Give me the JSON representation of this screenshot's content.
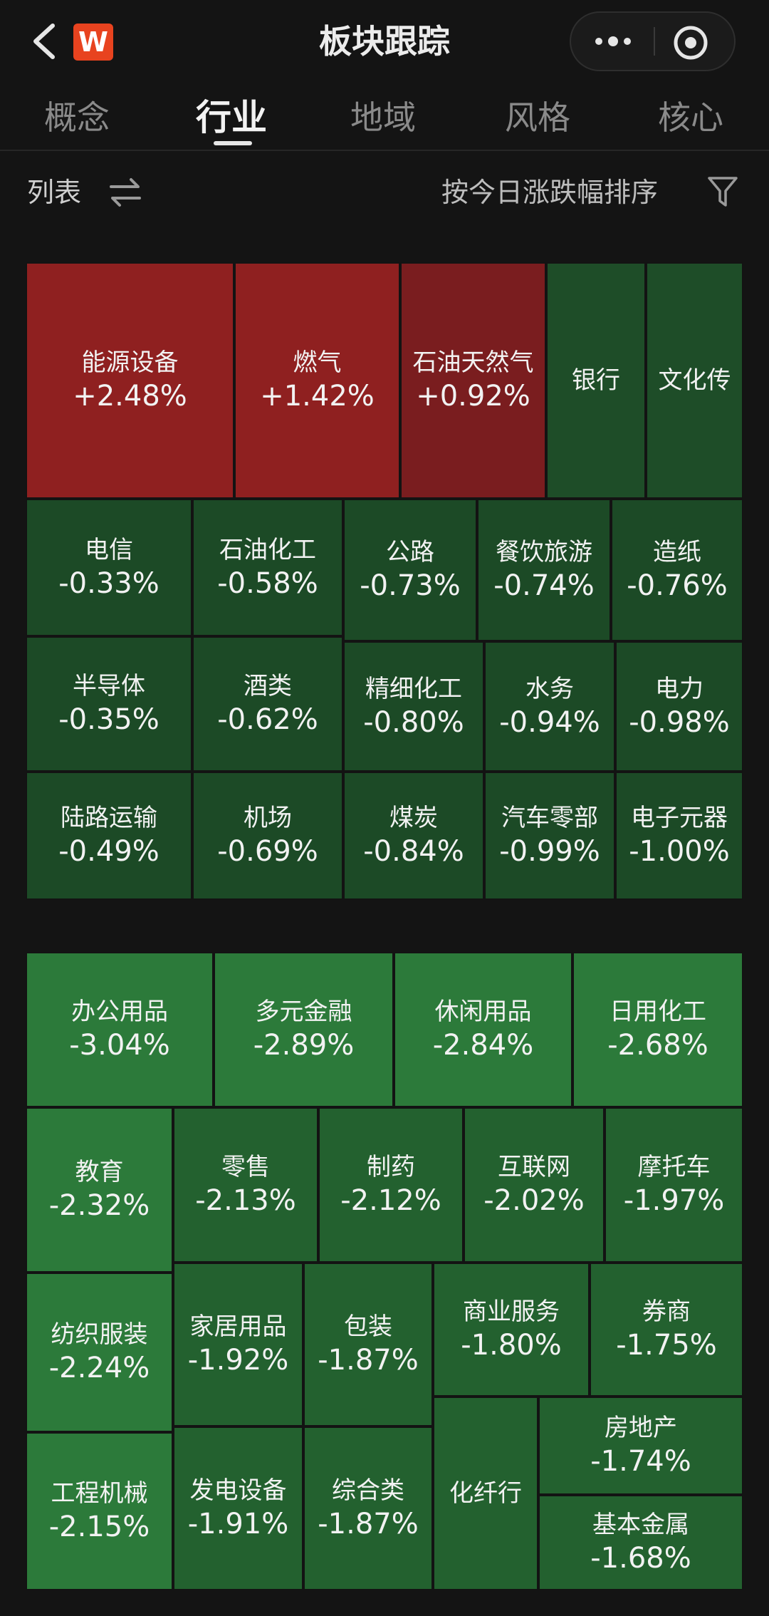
{
  "header": {
    "title": "板块跟踪",
    "logo_text": "W",
    "brand_color": "#e8431f"
  },
  "tabs": [
    {
      "label": "概念",
      "active": false
    },
    {
      "label": "行业",
      "active": true
    },
    {
      "label": "地域",
      "active": false
    },
    {
      "label": "风格",
      "active": false
    },
    {
      "label": "核心",
      "active": false
    }
  ],
  "toolbar": {
    "list_label": "列表",
    "sort_label": "按今日涨跌幅排序"
  },
  "colors": {
    "up": "#8f2020",
    "down_dark": "#1c4a26",
    "down_mid": "#23612f",
    "down_light": "#2c7a3a"
  },
  "top_map": [
    {
      "name": "能源设备",
      "change": "+2.48%",
      "tone": "up"
    },
    {
      "name": "燃气",
      "change": "+1.42%",
      "tone": "up"
    },
    {
      "name": "石油天然气",
      "change": "+0.92%",
      "tone": "up2"
    },
    {
      "name": "银行",
      "change": "",
      "tone": "flat"
    },
    {
      "name": "文化传",
      "change": "",
      "tone": "flat"
    },
    {
      "name": "电信",
      "change": "-0.33%",
      "tone": "d1"
    },
    {
      "name": "石油化工",
      "change": "-0.58%",
      "tone": "d1"
    },
    {
      "name": "公路",
      "change": "-0.73%",
      "tone": "d1"
    },
    {
      "name": "餐饮旅游",
      "change": "-0.74%",
      "tone": "d1"
    },
    {
      "name": "造纸",
      "change": "-0.76%",
      "tone": "d1"
    },
    {
      "name": "半导体",
      "change": "-0.35%",
      "tone": "d1"
    },
    {
      "name": "酒类",
      "change": "-0.62%",
      "tone": "d1"
    },
    {
      "name": "精细化工",
      "change": "-0.80%",
      "tone": "d1"
    },
    {
      "name": "水务",
      "change": "-0.94%",
      "tone": "d1"
    },
    {
      "name": "电力",
      "change": "-0.98%",
      "tone": "d1"
    },
    {
      "name": "陆路运输",
      "change": "-0.49%",
      "tone": "d1"
    },
    {
      "name": "机场",
      "change": "-0.69%",
      "tone": "d1"
    },
    {
      "name": "煤炭",
      "change": "-0.84%",
      "tone": "d1"
    },
    {
      "name": "汽车零部",
      "change": "-0.99%",
      "tone": "d1"
    },
    {
      "name": "电子元器",
      "change": "-1.00%",
      "tone": "d1"
    }
  ],
  "bottom_map": [
    {
      "name": "办公用品",
      "change": "-3.04%",
      "tone": "d3"
    },
    {
      "name": "多元金融",
      "change": "-2.89%",
      "tone": "d3"
    },
    {
      "name": "休闲用品",
      "change": "-2.84%",
      "tone": "d3"
    },
    {
      "name": "日用化工",
      "change": "-2.68%",
      "tone": "d3"
    },
    {
      "name": "教育",
      "change": "-2.32%",
      "tone": "d3"
    },
    {
      "name": "零售",
      "change": "-2.13%",
      "tone": "d2"
    },
    {
      "name": "制药",
      "change": "-2.12%",
      "tone": "d2"
    },
    {
      "name": "互联网",
      "change": "-2.02%",
      "tone": "d2"
    },
    {
      "name": "摩托车",
      "change": "-1.97%",
      "tone": "d2"
    },
    {
      "name": "纺织服装",
      "change": "-2.24%",
      "tone": "d3"
    },
    {
      "name": "家居用品",
      "change": "-1.92%",
      "tone": "d2"
    },
    {
      "name": "包装",
      "change": "-1.87%",
      "tone": "d2"
    },
    {
      "name": "商业服务",
      "change": "-1.80%",
      "tone": "d2"
    },
    {
      "name": "券商",
      "change": "-1.75%",
      "tone": "d2"
    },
    {
      "name": "工程机械",
      "change": "-2.15%",
      "tone": "d3"
    },
    {
      "name": "发电设备",
      "change": "-1.91%",
      "tone": "d2"
    },
    {
      "name": "综合类",
      "change": "-1.87%",
      "tone": "d2"
    },
    {
      "name": "化纤行",
      "change": "",
      "tone": "d2"
    },
    {
      "name": "房地产",
      "change": "-1.74%",
      "tone": "d2"
    },
    {
      "name": "基本金属",
      "change": "-1.68%",
      "tone": "d2"
    }
  ]
}
